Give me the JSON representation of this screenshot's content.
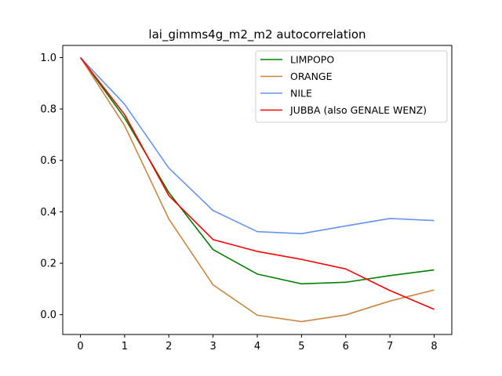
{
  "chart_data": {
    "type": "line",
    "title": "lai_gimms4g_m2_m2 autocorrelation",
    "xlabel": "",
    "ylabel": "",
    "x": [
      0,
      1,
      2,
      3,
      4,
      5,
      6,
      7,
      8
    ],
    "xticks": [
      "0",
      "1",
      "2",
      "3",
      "4",
      "5",
      "6",
      "7",
      "8"
    ],
    "yticks": [
      "0.0",
      "0.2",
      "0.4",
      "0.6",
      "0.8",
      "1.0"
    ],
    "xlim": [
      -0.4,
      8.4
    ],
    "ylim": [
      -0.077,
      1.047
    ],
    "grid": false,
    "legend_position": "top-right",
    "series": [
      {
        "name": "LIMPOPO",
        "color": "#008000",
        "values": [
          1.0,
          0.765,
          0.475,
          0.253,
          0.158,
          0.12,
          0.126,
          0.152,
          0.174
        ]
      },
      {
        "name": "ORANGE",
        "color": "#cd853f",
        "values": [
          1.0,
          0.735,
          0.372,
          0.116,
          -0.002,
          -0.027,
          -0.001,
          0.053,
          0.096
        ]
      },
      {
        "name": "NILE",
        "color": "#6495ed",
        "values": [
          1.0,
          0.818,
          0.57,
          0.405,
          0.323,
          0.315,
          0.345,
          0.374,
          0.366
        ]
      },
      {
        "name": "JUBBA (also GENALE WENZ)",
        "color": "#ff0000",
        "values": [
          1.0,
          0.778,
          0.463,
          0.292,
          0.246,
          0.215,
          0.178,
          0.094,
          0.021
        ]
      }
    ]
  }
}
